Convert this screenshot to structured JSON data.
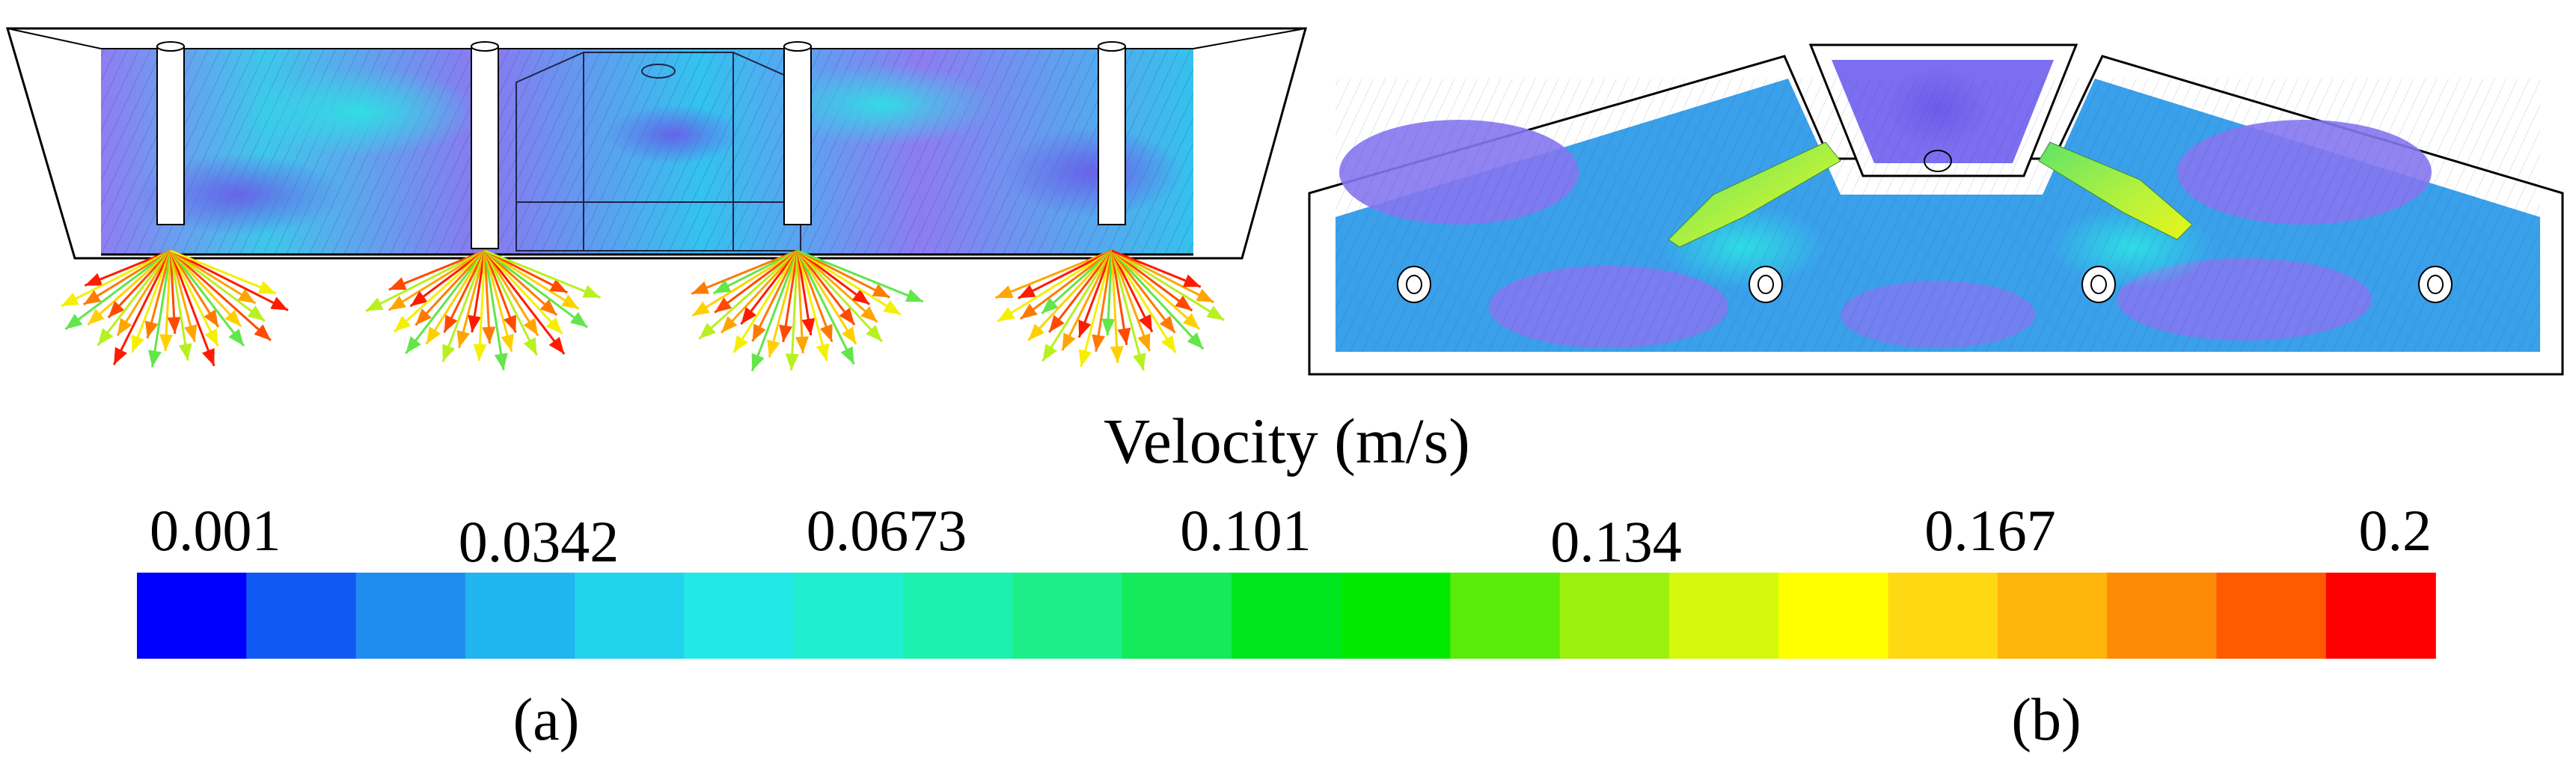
{
  "legend": {
    "title": "Velocity (m/s)",
    "ticks": [
      "0.001",
      "0.0342",
      "0.0673",
      "0.101",
      "0.134",
      "0.167",
      "0.2"
    ],
    "colors": [
      "#0000ff",
      "#1158f5",
      "#1f8df0",
      "#20b5ee",
      "#22d3ee",
      "#22e9e6",
      "#1fefcf",
      "#1ef0b0",
      "#1eee8a",
      "#14ea5a",
      "#00e61e",
      "#00ea00",
      "#5aec0a",
      "#9cf00e",
      "#d4f80c",
      "#ffff00",
      "#ffd814",
      "#ffb40a",
      "#ff8a05",
      "#ff5a00",
      "#ff0000"
    ]
  },
  "panels": {
    "a": {
      "caption": "(a)",
      "caption_letter": "a"
    },
    "b": {
      "caption": "(b)",
      "caption_letter": "b"
    }
  },
  "palette": {
    "flow_low": "#7a6cf0",
    "flow_mid": "#2fa8ec",
    "flow_cyan": "#24d6e6",
    "flow_green": "#59e35a",
    "flow_high": "#ff2a00"
  }
}
